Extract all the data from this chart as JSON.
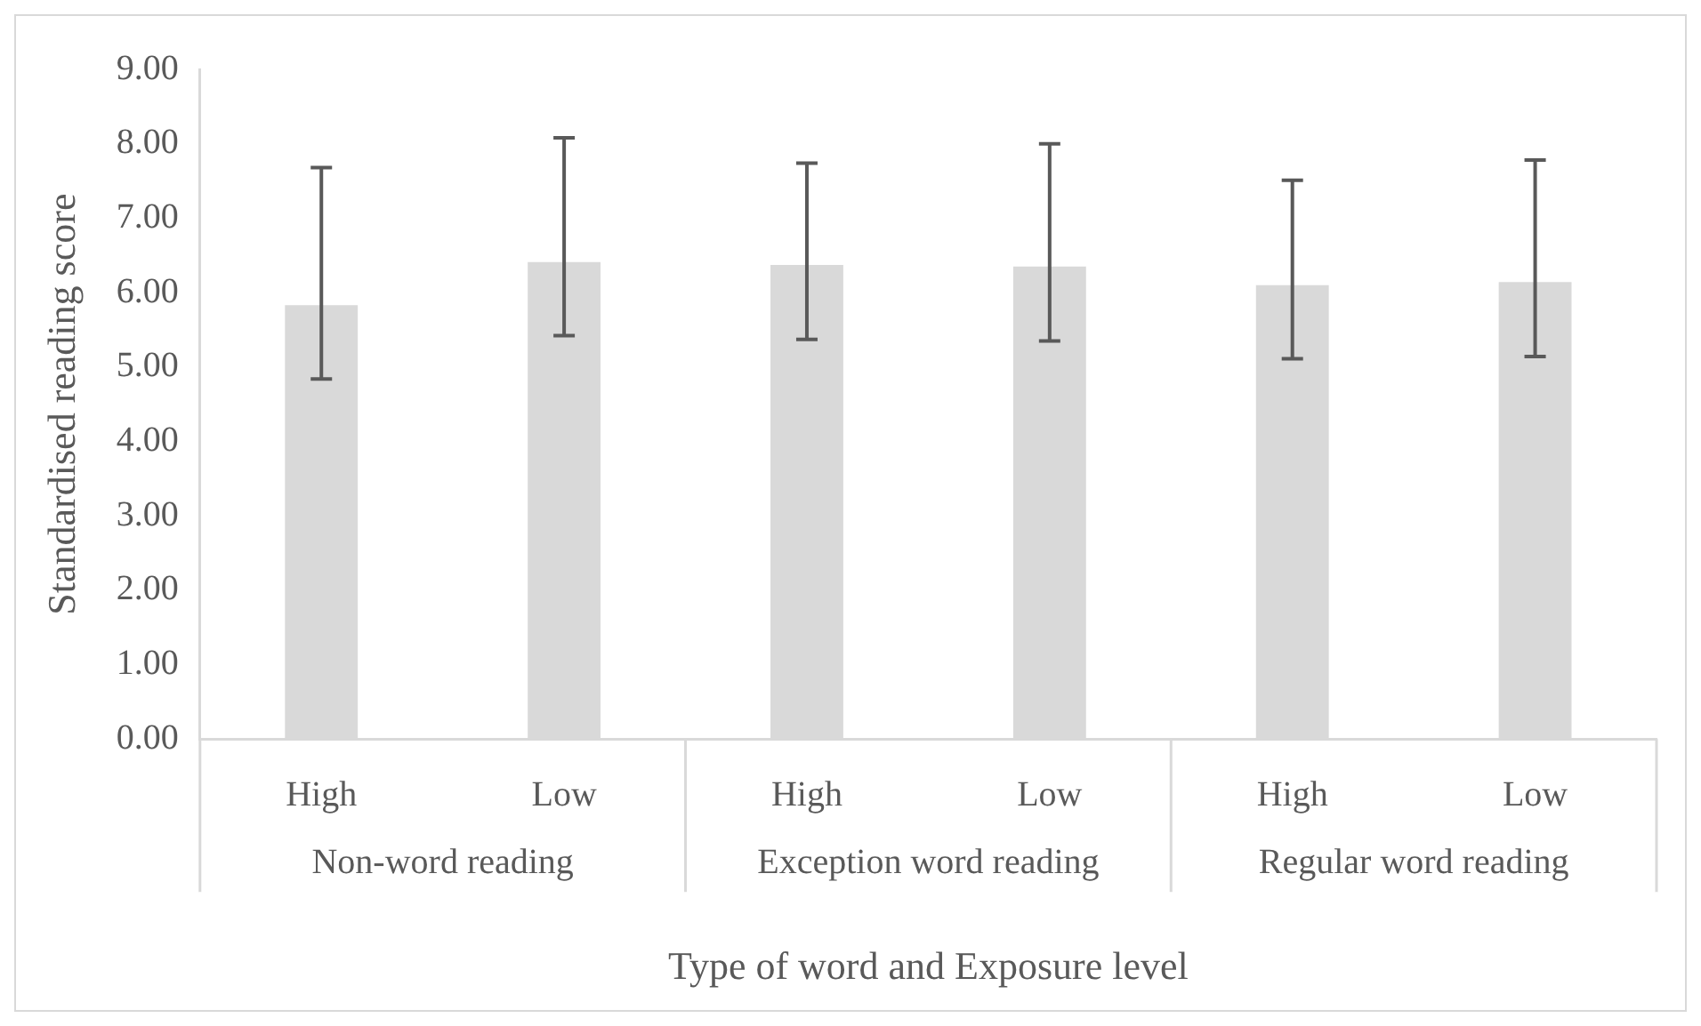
{
  "chart_data": {
    "type": "bar",
    "xlabel": "Type of word and Exposure level",
    "ylabel": "Standardised reading score",
    "categories": [
      "High",
      "Low",
      "High",
      "Low",
      "High",
      "Low"
    ],
    "annotations": [
      "Non-word reading",
      "Exception word reading",
      "Regular word reading"
    ],
    "values": [
      5.83,
      6.41,
      6.37,
      6.35,
      6.1,
      6.14
    ],
    "errors": [
      [
        4.84,
        7.68
      ],
      [
        5.42,
        8.08
      ],
      [
        5.37,
        7.74
      ],
      [
        5.35,
        8.0
      ],
      [
        5.11,
        7.51
      ],
      [
        5.14,
        7.78
      ]
    ],
    "color": "#d9d9d9",
    "ylim": [
      0,
      9
    ],
    "yticks": [
      {
        "value": 0,
        "label": "0.00"
      },
      {
        "value": 1,
        "label": "1.00"
      },
      {
        "value": 2,
        "label": "2.00"
      },
      {
        "value": 3,
        "label": "3.00"
      },
      {
        "value": 4,
        "label": "4.00"
      },
      {
        "value": 5,
        "label": "5.00"
      },
      {
        "value": 6,
        "label": "6.00"
      },
      {
        "value": 7,
        "label": "7.00"
      },
      {
        "value": 8,
        "label": "8.00"
      },
      {
        "value": 9,
        "label": "9.00"
      }
    ],
    "grid": false,
    "legend": false
  }
}
